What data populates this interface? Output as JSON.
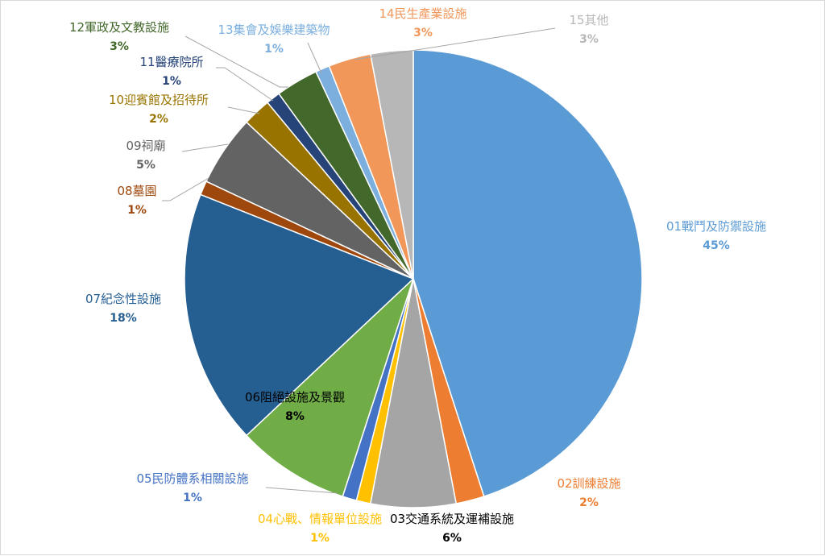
{
  "chart_data": {
    "type": "pie",
    "title": "",
    "slices": [
      {
        "name": "01戰鬥及防禦設施",
        "value": 45,
        "label": "45%",
        "color": "#5b9bd5"
      },
      {
        "name": "02訓練設施",
        "value": 2,
        "label": "2%",
        "color": "#ed7d31"
      },
      {
        "name": "03交通系統及運補設施",
        "value": 6,
        "label": "6%",
        "color": "#a5a5a5"
      },
      {
        "name": "04心戰、情報單位設施",
        "value": 1,
        "label": "1%",
        "color": "#ffc000"
      },
      {
        "name": "05民防體系相關設施",
        "value": 1,
        "label": "1%",
        "color": "#4472c4"
      },
      {
        "name": "06阻絕設施及景觀",
        "value": 8,
        "label": "8%",
        "color": "#70ad47"
      },
      {
        "name": "07紀念性設施",
        "value": 18,
        "label": "18%",
        "color": "#255e91"
      },
      {
        "name": "08墓園",
        "value": 1,
        "label": "1%",
        "color": "#9e480e"
      },
      {
        "name": "09祠廟",
        "value": 5,
        "label": "5%",
        "color": "#636363"
      },
      {
        "name": "10迎賓館及招待所",
        "value": 2,
        "label": "2%",
        "color": "#997300"
      },
      {
        "name": "11醫療院所",
        "value": 1,
        "label": "1%",
        "color": "#264478"
      },
      {
        "name": "12軍政及文教設施",
        "value": 3,
        "label": "3%",
        "color": "#43682b"
      },
      {
        "name": "13集會及娛樂建築物",
        "value": 1,
        "label": "1%",
        "color": "#7cafdd"
      },
      {
        "name": "14民生產業設施",
        "value": 3,
        "label": "3%",
        "color": "#f1975a"
      },
      {
        "name": "15其他",
        "value": 3,
        "label": "3%",
        "color": "#b7b7b7"
      }
    ]
  }
}
